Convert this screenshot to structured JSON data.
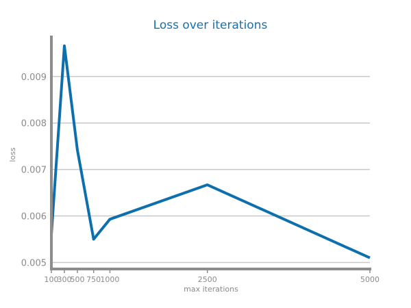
{
  "chart_data": {
    "type": "line",
    "title": "Loss over iterations",
    "xlabel": "max iterations",
    "ylabel": "loss",
    "x_ticks": [
      100,
      300,
      500,
      750,
      1000,
      2500,
      5000
    ],
    "x_tick_labels": [
      "100",
      "300",
      "500",
      "750",
      "1000",
      "2500",
      "5000"
    ],
    "y_ticks": [
      0.005,
      0.006,
      0.007,
      0.008,
      0.009
    ],
    "y_tick_labels": [
      "0.005",
      "0.006",
      "0.007",
      "0.008",
      "0.009"
    ],
    "xlim": [
      100,
      5000
    ],
    "ylim": [
      0.00486,
      0.00988
    ],
    "grid": "horizontal",
    "series": [
      {
        "color": "#0e6fad",
        "x": [
          100,
          300,
          500,
          750,
          1000,
          2500,
          5000
        ],
        "values": [
          0.0056,
          0.00966,
          0.00742,
          0.0055,
          0.00593,
          0.00667,
          0.0051
        ]
      }
    ]
  }
}
